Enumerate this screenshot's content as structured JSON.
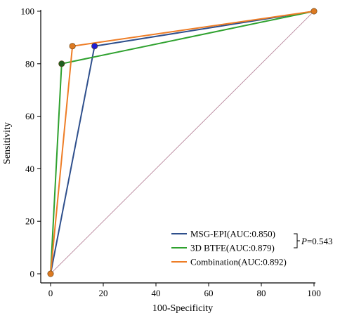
{
  "chart_data": {
    "type": "line",
    "title": "",
    "xlabel": "100-Specificity",
    "ylabel": "Sensitivity",
    "xlim": [
      0,
      100
    ],
    "ylim": [
      0,
      100
    ],
    "x_ticks": [
      "0",
      "20",
      "40",
      "60",
      "80",
      "100"
    ],
    "y_ticks": [
      "0",
      "20",
      "40",
      "60",
      "80",
      "100"
    ],
    "grid": false,
    "legend_position": "bottom-right",
    "reference_line": {
      "points": [
        [
          0,
          0
        ],
        [
          100,
          100
        ]
      ],
      "color": "#b07890"
    },
    "series": [
      {
        "name": "MSG-EPI(AUC:0.850)",
        "color": "#2e4f8c",
        "marker_color": "#1f1fd6",
        "points": [
          [
            0,
            0
          ],
          [
            16.7,
            86.7
          ],
          [
            100,
            100
          ]
        ],
        "marker_indices": [
          1
        ]
      },
      {
        "name": "3D BTFE(AUC:0.879)",
        "color": "#2ea12e",
        "marker_color": "#1f5f1f",
        "points": [
          [
            0,
            0
          ],
          [
            4.2,
            80
          ],
          [
            100,
            100
          ]
        ],
        "marker_indices": [
          1
        ]
      },
      {
        "name": "Combination(AUC:0.892)",
        "color": "#ee7d26",
        "marker_color": "#dd7a22",
        "points": [
          [
            0,
            0
          ],
          [
            8.3,
            86.7
          ],
          [
            100,
            100
          ]
        ],
        "marker_indices": [
          0,
          1,
          2
        ]
      }
    ],
    "annotation": {
      "italic": "P",
      "text": "=0.543"
    }
  }
}
